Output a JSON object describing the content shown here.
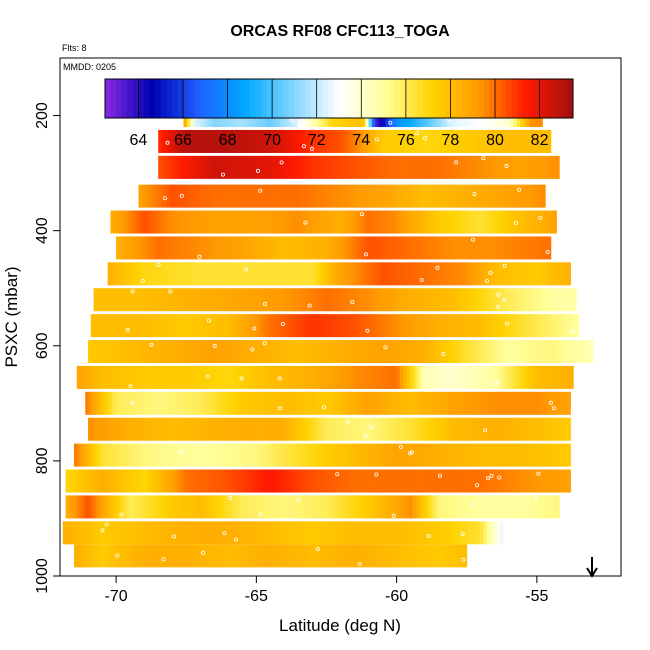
{
  "chart_data": {
    "type": "heatmap",
    "title": "ORCAS RF08 CFC113_TOGA",
    "flights_note": "Flts: 8",
    "date_note": "MMDD: 0205",
    "xlabel": "Latitude (deg N)",
    "ylabel": "PSXC (mbar)",
    "xlim": [
      -72,
      -52
    ],
    "ylim": [
      1000,
      100
    ],
    "xticks": [
      -70,
      -65,
      -60,
      -55
    ],
    "xtick_labels": [
      "-70",
      "-65",
      "-60",
      "-55"
    ],
    "yticks": [
      200,
      400,
      600,
      800,
      1000
    ],
    "ytick_labels": [
      "200",
      "400",
      "600",
      "800",
      "1000"
    ],
    "colorbar": {
      "min": 62.5,
      "max": 83.5,
      "ticks": [
        64,
        66,
        68,
        70,
        72,
        74,
        76,
        78,
        80,
        82
      ],
      "tick_labels": [
        "64",
        "66",
        "68",
        "70",
        "72",
        "74",
        "76",
        "78",
        "80",
        "82"
      ]
    },
    "palette": [
      "#8a2be2",
      "#0000b0",
      "#1f5fff",
      "#00a8ff",
      "#7fd4ff",
      "#ffffff",
      "#ffff9a",
      "#ffd200",
      "#ff9a00",
      "#ff1a00",
      "#a01010"
    ],
    "bands": [
      {
        "p": 200,
        "lat0": -67.6,
        "lat1": -54.8,
        "values": [
          [
            -67.6,
            79.5
          ],
          [
            -67.2,
            72.5
          ],
          [
            -66.5,
            71.0
          ],
          [
            -65.5,
            71.5
          ],
          [
            -64.5,
            70.5
          ],
          [
            -63.7,
            72.0
          ],
          [
            -63.0,
            74.5
          ],
          [
            -62.3,
            77.0
          ],
          [
            -61.2,
            78.0
          ],
          [
            -60.7,
            63.5
          ],
          [
            -60.0,
            68.0
          ],
          [
            -59.0,
            70.0
          ],
          [
            -58.0,
            72.5
          ],
          [
            -57.0,
            73.0
          ],
          [
            -56.0,
            74.0
          ],
          [
            -55.2,
            79.5
          ]
        ]
      },
      {
        "p": 245,
        "lat0": -68.5,
        "lat1": -54.5,
        "values": [
          [
            -68.5,
            81.0
          ],
          [
            -67.6,
            83.0
          ],
          [
            -66.0,
            83.0
          ],
          [
            -64.5,
            82.5
          ],
          [
            -63.0,
            81.0
          ],
          [
            -62.0,
            80.5
          ],
          [
            -61.3,
            79.5
          ],
          [
            -60.5,
            77.5
          ],
          [
            -59.0,
            77.0
          ],
          [
            -57.5,
            77.5
          ],
          [
            -56.0,
            78.0
          ],
          [
            -54.5,
            78.0
          ]
        ]
      },
      {
        "p": 290,
        "lat0": -68.5,
        "lat1": -54.2,
        "values": [
          [
            -68.5,
            80.5
          ],
          [
            -66.5,
            82.5
          ],
          [
            -64.5,
            82.0
          ],
          [
            -63.0,
            81.0
          ],
          [
            -61.5,
            80.5
          ],
          [
            -60.0,
            80.0
          ],
          [
            -58.5,
            80.0
          ],
          [
            -57.0,
            79.5
          ],
          [
            -55.5,
            79.0
          ],
          [
            -54.2,
            79.5
          ]
        ]
      },
      {
        "p": 340,
        "lat0": -69.2,
        "lat1": -54.7,
        "values": [
          [
            -69.2,
            79.0
          ],
          [
            -68.0,
            80.5
          ],
          [
            -66.5,
            80.0
          ],
          [
            -65.0,
            80.0
          ],
          [
            -63.5,
            80.0
          ],
          [
            -62.0,
            79.5
          ],
          [
            -60.5,
            79.0
          ],
          [
            -59.0,
            78.0
          ],
          [
            -57.5,
            78.5
          ],
          [
            -56.0,
            79.0
          ],
          [
            -54.7,
            79.5
          ]
        ]
      },
      {
        "p": 385,
        "lat0": -70.2,
        "lat1": -54.3,
        "values": [
          [
            -70.2,
            78.5
          ],
          [
            -69.0,
            80.5
          ],
          [
            -68.0,
            79.5
          ],
          [
            -66.5,
            79.0
          ],
          [
            -65.0,
            79.0
          ],
          [
            -63.5,
            79.5
          ],
          [
            -62.0,
            78.5
          ],
          [
            -61.0,
            80.0
          ],
          [
            -60.0,
            79.5
          ],
          [
            -58.5,
            77.5
          ],
          [
            -57.0,
            76.5
          ],
          [
            -55.5,
            78.0
          ],
          [
            -54.3,
            79.0
          ]
        ]
      },
      {
        "p": 430,
        "lat0": -70.0,
        "lat1": -54.5,
        "values": [
          [
            -70.0,
            78.5
          ],
          [
            -68.5,
            80.0
          ],
          [
            -67.0,
            79.5
          ],
          [
            -65.5,
            79.0
          ],
          [
            -64.0,
            78.0
          ],
          [
            -62.5,
            78.5
          ],
          [
            -61.0,
            80.5
          ],
          [
            -59.5,
            80.0
          ],
          [
            -58.0,
            79.5
          ],
          [
            -56.5,
            79.5
          ],
          [
            -54.5,
            80.0
          ]
        ]
      },
      {
        "p": 475,
        "lat0": -70.3,
        "lat1": -53.8,
        "values": [
          [
            -70.3,
            78.5
          ],
          [
            -69.0,
            77.0
          ],
          [
            -67.0,
            76.5
          ],
          [
            -65.0,
            76.5
          ],
          [
            -63.0,
            76.5
          ],
          [
            -62.0,
            79.0
          ],
          [
            -60.5,
            80.5
          ],
          [
            -59.0,
            80.0
          ],
          [
            -57.5,
            79.5
          ],
          [
            -56.5,
            78.0
          ],
          [
            -55.0,
            77.5
          ],
          [
            -53.8,
            78.5
          ]
        ]
      },
      {
        "p": 520,
        "lat0": -70.8,
        "lat1": -53.6,
        "values": [
          [
            -70.8,
            78.0
          ],
          [
            -69.0,
            78.0
          ],
          [
            -67.0,
            78.5
          ],
          [
            -65.0,
            79.0
          ],
          [
            -63.5,
            79.5
          ],
          [
            -62.5,
            80.0
          ],
          [
            -61.0,
            79.5
          ],
          [
            -59.5,
            78.5
          ],
          [
            -58.0,
            78.0
          ],
          [
            -56.0,
            76.0
          ],
          [
            -54.5,
            75.0
          ],
          [
            -53.6,
            74.8
          ]
        ]
      },
      {
        "p": 565,
        "lat0": -70.9,
        "lat1": -53.5,
        "values": [
          [
            -70.9,
            78.0
          ],
          [
            -69.0,
            78.0
          ],
          [
            -67.5,
            77.5
          ],
          [
            -66.0,
            78.0
          ],
          [
            -64.5,
            80.0
          ],
          [
            -63.0,
            81.0
          ],
          [
            -61.5,
            80.5
          ],
          [
            -60.0,
            79.5
          ],
          [
            -58.5,
            78.5
          ],
          [
            -57.0,
            78.0
          ],
          [
            -55.5,
            76.5
          ],
          [
            -53.5,
            75.0
          ]
        ]
      },
      {
        "p": 610,
        "lat0": -71.0,
        "lat1": -53.0,
        "values": [
          [
            -71.0,
            77.5
          ],
          [
            -69.5,
            78.0
          ],
          [
            -68.0,
            78.5
          ],
          [
            -66.5,
            79.0
          ],
          [
            -65.0,
            78.5
          ],
          [
            -63.5,
            78.0
          ],
          [
            -62.0,
            78.5
          ],
          [
            -60.5,
            79.0
          ],
          [
            -59.0,
            78.5
          ],
          [
            -57.5,
            76.5
          ],
          [
            -56.0,
            75.0
          ],
          [
            -54.5,
            75.5
          ],
          [
            -53.0,
            74.5
          ]
        ]
      },
      {
        "p": 655,
        "lat0": -71.4,
        "lat1": -53.7,
        "values": [
          [
            -71.4,
            79.0
          ],
          [
            -70.5,
            78.0
          ],
          [
            -69.0,
            77.5
          ],
          [
            -67.5,
            77.5
          ],
          [
            -66.0,
            77.0
          ],
          [
            -64.5,
            78.0
          ],
          [
            -63.0,
            78.5
          ],
          [
            -61.5,
            79.5
          ],
          [
            -60.0,
            80.0
          ],
          [
            -59.0,
            74.5
          ],
          [
            -58.0,
            74.0
          ],
          [
            -56.5,
            75.0
          ],
          [
            -55.0,
            78.0
          ],
          [
            -53.7,
            78.5
          ]
        ]
      },
      {
        "p": 700,
        "lat0": -71.1,
        "lat1": -53.8,
        "values": [
          [
            -71.1,
            80.0
          ],
          [
            -70.0,
            76.0
          ],
          [
            -68.5,
            75.5
          ],
          [
            -67.0,
            76.0
          ],
          [
            -65.5,
            77.5
          ],
          [
            -64.0,
            78.0
          ],
          [
            -62.5,
            77.5
          ],
          [
            -61.0,
            79.0
          ],
          [
            -59.5,
            78.0
          ],
          [
            -58.0,
            79.0
          ],
          [
            -56.5,
            79.5
          ],
          [
            -55.0,
            79.5
          ],
          [
            -53.8,
            79.0
          ]
        ]
      },
      {
        "p": 745,
        "lat0": -71.0,
        "lat1": -53.8,
        "values": [
          [
            -71.0,
            79.5
          ],
          [
            -69.5,
            78.5
          ],
          [
            -68.0,
            78.0
          ],
          [
            -66.0,
            78.5
          ],
          [
            -64.0,
            78.5
          ],
          [
            -62.5,
            76.0
          ],
          [
            -61.0,
            75.5
          ],
          [
            -59.5,
            76.5
          ],
          [
            -58.0,
            78.0
          ],
          [
            -56.5,
            78.5
          ],
          [
            -55.0,
            78.0
          ],
          [
            -53.8,
            77.5
          ]
        ]
      },
      {
        "p": 790,
        "lat0": -71.5,
        "lat1": -53.8,
        "values": [
          [
            -71.5,
            80.0
          ],
          [
            -70.5,
            76.5
          ],
          [
            -69.0,
            75.5
          ],
          [
            -67.0,
            75.0
          ],
          [
            -65.0,
            75.5
          ],
          [
            -63.0,
            77.0
          ],
          [
            -61.5,
            78.0
          ],
          [
            -60.0,
            79.0
          ],
          [
            -58.5,
            78.5
          ],
          [
            -57.0,
            78.0
          ],
          [
            -55.5,
            78.0
          ],
          [
            -53.8,
            77.5
          ]
        ]
      },
      {
        "p": 835,
        "lat0": -71.8,
        "lat1": -53.8,
        "values": [
          [
            -71.8,
            77.0
          ],
          [
            -70.5,
            78.5
          ],
          [
            -69.0,
            77.0
          ],
          [
            -67.5,
            80.0
          ],
          [
            -66.0,
            80.5
          ],
          [
            -64.5,
            81.5
          ],
          [
            -63.0,
            80.5
          ],
          [
            -61.5,
            80.0
          ],
          [
            -60.0,
            80.0
          ],
          [
            -58.5,
            80.0
          ],
          [
            -57.0,
            80.0
          ],
          [
            -55.5,
            79.5
          ],
          [
            -53.8,
            79.0
          ]
        ]
      },
      {
        "p": 880,
        "lat0": -71.8,
        "lat1": -54.2,
        "values": [
          [
            -71.8,
            78.5
          ],
          [
            -71.0,
            80.5
          ],
          [
            -69.5,
            76.0
          ],
          [
            -68.0,
            77.5
          ],
          [
            -67.0,
            78.0
          ],
          [
            -65.5,
            76.0
          ],
          [
            -64.0,
            75.5
          ],
          [
            -62.5,
            76.0
          ],
          [
            -61.0,
            77.5
          ],
          [
            -59.5,
            79.5
          ],
          [
            -58.5,
            75.5
          ],
          [
            -57.0,
            75.0
          ],
          [
            -55.5,
            75.0
          ],
          [
            -54.2,
            75.5
          ]
        ]
      },
      {
        "p": 925,
        "lat0": -71.9,
        "lat1": -56.2,
        "values": [
          [
            -71.9,
            78.5
          ],
          [
            -70.5,
            77.5
          ],
          [
            -69.0,
            78.0
          ],
          [
            -67.5,
            78.5
          ],
          [
            -66.0,
            78.5
          ],
          [
            -64.5,
            78.0
          ],
          [
            -63.0,
            77.5
          ],
          [
            -61.5,
            78.0
          ],
          [
            -60.0,
            78.0
          ],
          [
            -58.5,
            77.5
          ],
          [
            -57.0,
            76.5
          ],
          [
            -56.2,
            72.5
          ]
        ]
      },
      {
        "p": 965,
        "lat0": -71.5,
        "lat1": -57.5,
        "values": [
          [
            -71.5,
            78.5
          ],
          [
            -70.5,
            77.5
          ],
          [
            -69.0,
            78.5
          ],
          [
            -67.5,
            78.5
          ],
          [
            -66.0,
            78.0
          ],
          [
            -64.5,
            78.5
          ],
          [
            -63.0,
            78.0
          ],
          [
            -61.5,
            78.5
          ],
          [
            -60.0,
            78.0
          ],
          [
            -58.5,
            77.5
          ],
          [
            -57.5,
            78.0
          ]
        ]
      }
    ]
  }
}
